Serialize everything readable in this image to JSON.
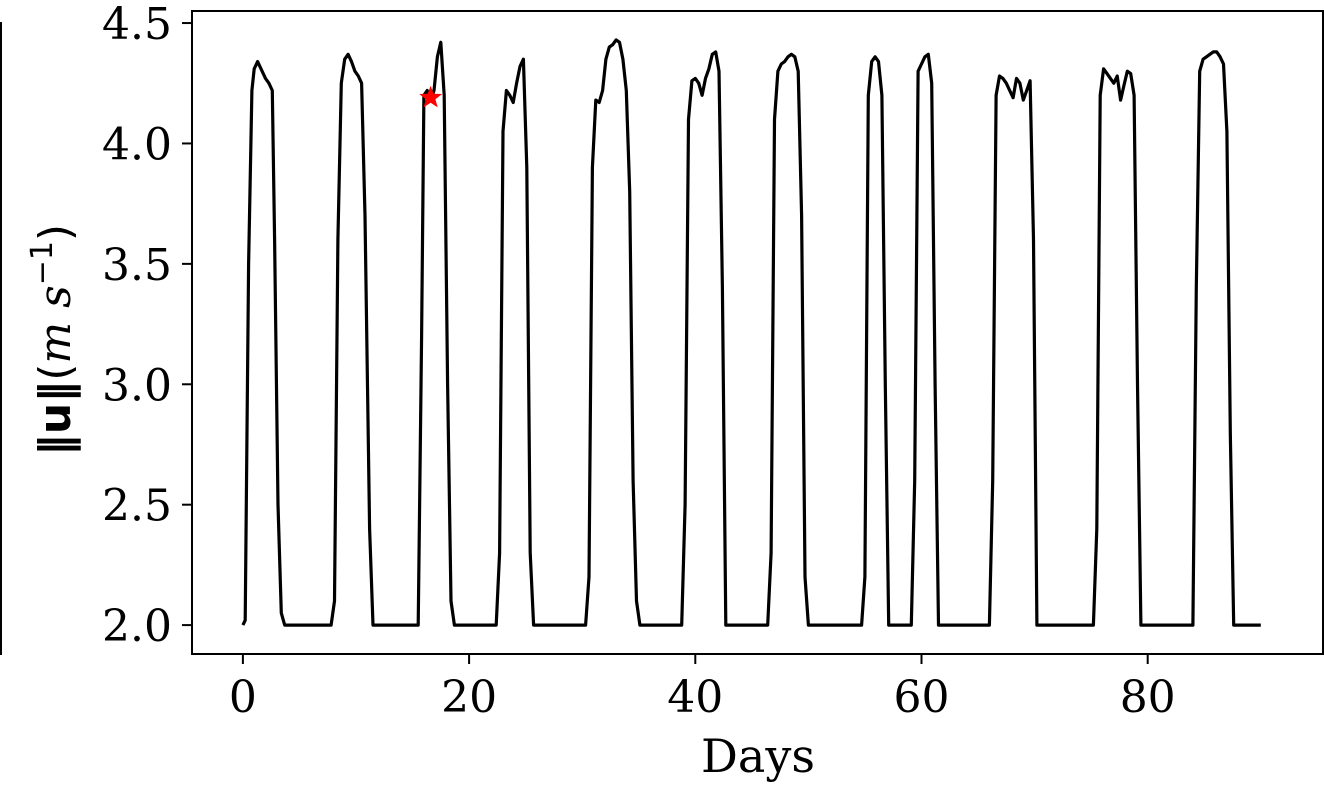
{
  "chart_data": {
    "type": "line",
    "xlabel": "Days",
    "ylabel": {
      "norm": "‖u‖",
      "paren_open": "(",
      "unit_m": "m",
      "unit_s": "s",
      "exponent": "−1",
      "paren_close": ")"
    },
    "xlim": [
      -4.5,
      95.5
    ],
    "ylim": [
      1.88,
      4.55
    ],
    "xticks": [
      0,
      20,
      40,
      60,
      80
    ],
    "xtick_labels": [
      "0",
      "20",
      "40",
      "60",
      "80"
    ],
    "yticks": [
      2.0,
      2.5,
      3.0,
      3.5,
      4.0,
      4.5
    ],
    "ytick_labels": [
      "2.0",
      "2.5",
      "3.0",
      "3.5",
      "4.0",
      "4.5"
    ],
    "grid": false,
    "colors": {
      "line": "#000000",
      "marker": "#ff0000"
    },
    "series": [
      {
        "x": [
          0,
          0.2,
          0.5,
          0.8,
          1.0,
          1.3,
          1.6,
          2.0,
          2.3,
          2.6,
          2.8,
          3.1,
          3.4,
          3.7,
          4.0,
          7.8,
          8.1,
          8.4,
          8.7,
          9.0,
          9.3,
          9.6,
          9.9,
          10.2,
          10.5,
          10.8,
          11.2,
          11.5,
          11.8,
          15.5,
          15.8,
          16.0,
          16.3,
          16.6,
          16.9,
          17.2,
          17.5,
          17.8,
          18.1,
          18.4,
          18.7,
          22.4,
          22.7,
          23.0,
          23.3,
          23.6,
          23.9,
          24.2,
          24.5,
          24.8,
          25.1,
          25.4,
          25.7,
          30.3,
          30.6,
          30.9,
          31.2,
          31.5,
          31.8,
          32.1,
          32.4,
          32.7,
          33.0,
          33.3,
          33.6,
          33.9,
          34.2,
          34.5,
          34.8,
          35.1,
          35.4,
          38.8,
          39.1,
          39.4,
          39.7,
          40.0,
          40.3,
          40.6,
          40.9,
          41.2,
          41.5,
          41.8,
          42.1,
          42.4,
          42.7,
          46.4,
          46.7,
          47.0,
          47.3,
          47.6,
          47.9,
          48.2,
          48.5,
          48.8,
          49.1,
          49.4,
          49.7,
          50.0,
          54.7,
          55.0,
          55.3,
          55.6,
          55.9,
          56.2,
          56.5,
          56.8,
          57.1,
          59.1,
          59.4,
          59.7,
          60.0,
          60.3,
          60.6,
          60.9,
          61.2,
          61.5,
          66.0,
          66.3,
          66.6,
          66.9,
          67.2,
          67.5,
          67.8,
          68.1,
          68.4,
          68.7,
          69.0,
          69.3,
          69.6,
          69.9,
          70.2,
          75.2,
          75.5,
          75.8,
          76.1,
          76.4,
          76.7,
          77.0,
          77.3,
          77.6,
          77.9,
          78.2,
          78.5,
          78.8,
          79.1,
          79.4,
          84.0,
          84.3,
          84.6,
          84.9,
          85.2,
          85.5,
          85.8,
          86.1,
          86.4,
          86.7,
          87.0,
          87.3,
          87.6,
          87.9,
          90.0
        ],
        "y": [
          2.0,
          2.02,
          3.5,
          4.22,
          4.31,
          4.34,
          4.31,
          4.27,
          4.25,
          4.22,
          3.6,
          2.5,
          2.05,
          2.0,
          2.0,
          2.0,
          2.1,
          3.6,
          4.25,
          4.35,
          4.37,
          4.34,
          4.3,
          4.28,
          4.25,
          3.7,
          2.4,
          2.0,
          2.0,
          2.0,
          3.2,
          4.2,
          4.22,
          4.18,
          4.22,
          4.36,
          4.42,
          4.2,
          3.0,
          2.1,
          2.0,
          2.0,
          2.3,
          4.05,
          4.22,
          4.2,
          4.17,
          4.25,
          4.32,
          4.35,
          3.9,
          2.3,
          2.0,
          2.0,
          2.2,
          3.9,
          4.18,
          4.17,
          4.22,
          4.35,
          4.4,
          4.41,
          4.43,
          4.42,
          4.35,
          4.22,
          3.8,
          2.6,
          2.1,
          2.0,
          2.0,
          2.0,
          2.5,
          4.1,
          4.26,
          4.27,
          4.25,
          4.2,
          4.27,
          4.31,
          4.37,
          4.38,
          4.3,
          3.4,
          2.0,
          2.0,
          2.3,
          4.1,
          4.3,
          4.33,
          4.34,
          4.36,
          4.37,
          4.36,
          4.3,
          3.7,
          2.2,
          2.0,
          2.0,
          2.2,
          4.2,
          4.34,
          4.36,
          4.34,
          4.2,
          3.0,
          2.0,
          2.0,
          2.6,
          4.3,
          4.33,
          4.36,
          4.37,
          4.25,
          3.0,
          2.0,
          2.0,
          2.6,
          4.2,
          4.28,
          4.27,
          4.25,
          4.22,
          4.19,
          4.27,
          4.25,
          4.18,
          4.22,
          4.26,
          3.6,
          2.0,
          2.0,
          2.4,
          4.2,
          4.31,
          4.29,
          4.27,
          4.25,
          4.28,
          4.18,
          4.24,
          4.3,
          4.29,
          4.2,
          3.0,
          2.0,
          2.0,
          3.4,
          4.3,
          4.35,
          4.36,
          4.37,
          4.38,
          4.38,
          4.36,
          4.33,
          4.05,
          2.8,
          2.0,
          2.0,
          2.0
        ]
      }
    ],
    "markers": [
      {
        "x": 16.6,
        "y": 4.19,
        "shape": "star"
      }
    ]
  }
}
